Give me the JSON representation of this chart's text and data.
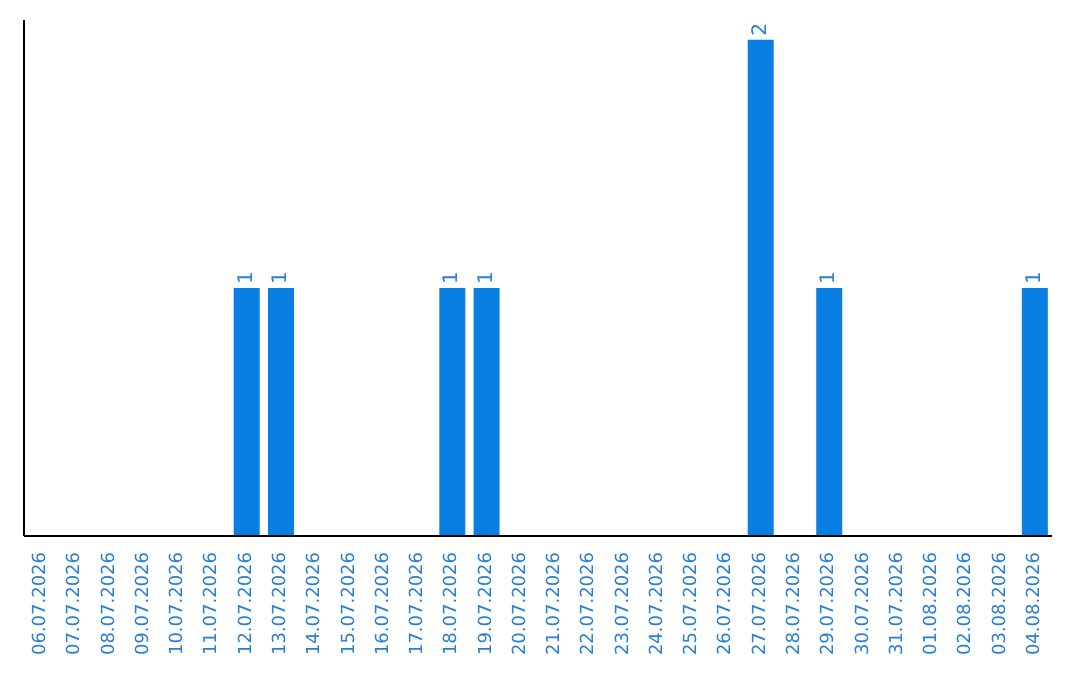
{
  "chart_data": {
    "type": "bar",
    "categories": [
      "06.07.2026",
      "07.07.2026",
      "08.07.2026",
      "09.07.2026",
      "10.07.2026",
      "11.07.2026",
      "12.07.2026",
      "13.07.2026",
      "14.07.2026",
      "15.07.2026",
      "16.07.2026",
      "17.07.2026",
      "18.07.2026",
      "19.07.2026",
      "20.07.2026",
      "21.07.2026",
      "22.07.2026",
      "23.07.2026",
      "24.07.2026",
      "25.07.2026",
      "26.07.2026",
      "27.07.2026",
      "28.07.2026",
      "29.07.2026",
      "30.07.2026",
      "31.07.2026",
      "01.08.2026",
      "02.08.2026",
      "03.08.2026",
      "04.08.2026"
    ],
    "values": [
      0,
      0,
      0,
      0,
      0,
      0,
      1,
      1,
      0,
      0,
      0,
      0,
      1,
      1,
      0,
      0,
      0,
      0,
      0,
      0,
      0,
      2,
      0,
      1,
      0,
      0,
      0,
      0,
      0,
      1
    ],
    "value_labels": [
      null,
      null,
      null,
      null,
      null,
      null,
      "1",
      "1",
      null,
      null,
      null,
      null,
      "1",
      "1",
      null,
      null,
      null,
      null,
      null,
      null,
      null,
      "2",
      null,
      "1",
      null,
      null,
      null,
      null,
      null,
      "1"
    ],
    "color": "#0a7fe3"
  }
}
